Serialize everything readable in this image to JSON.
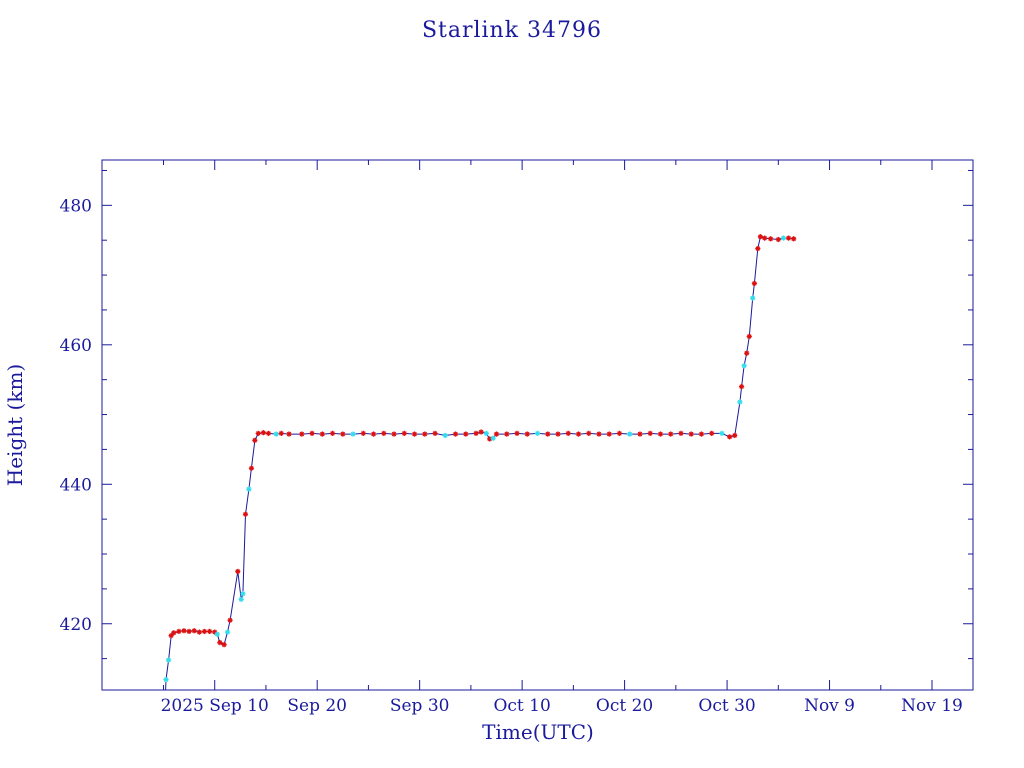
{
  "chart_data": {
    "type": "line",
    "title": "Starlink 34796",
    "xlabel": "Time(UTC)",
    "ylabel": "Height (km)",
    "xlim": [
      "2025-08-30",
      "2025-11-23"
    ],
    "ylim": [
      410.5,
      486.5
    ],
    "grid": false,
    "x_ticks": [
      {
        "date": "2025-09-10",
        "label": "2025 Sep 10"
      },
      {
        "date": "2025-09-20",
        "label": "Sep 20"
      },
      {
        "date": "2025-09-30",
        "label": "Sep 30"
      },
      {
        "date": "2025-10-10",
        "label": "Oct 10"
      },
      {
        "date": "2025-10-20",
        "label": "Oct 20"
      },
      {
        "date": "2025-10-30",
        "label": "Oct 30"
      },
      {
        "date": "2025-11-09",
        "label": "Nov  9"
      },
      {
        "date": "2025-11-19",
        "label": "Nov 19"
      }
    ],
    "x_minor_ticks": [
      "2025-09-05",
      "2025-09-15",
      "2025-09-25",
      "2025-10-05",
      "2025-10-15",
      "2025-10-25",
      "2025-11-04",
      "2025-11-14"
    ],
    "y_ticks": [
      420,
      440,
      460,
      480
    ],
    "y_minor_ticks": [
      415,
      425,
      430,
      435,
      445,
      450,
      455,
      465,
      470,
      475,
      485
    ],
    "line_color": "#1a1a9c",
    "marker_colors": {
      "red": "#dd1111",
      "cyan": "#33ddee"
    },
    "series": [
      {
        "points": [
          [
            "2025-09-05 05:00",
            410.5,
            "none"
          ],
          [
            "2025-09-05 06:00",
            412.0,
            "cyan"
          ],
          [
            "2025-09-05 12:00",
            414.8,
            "cyan"
          ],
          [
            "2025-09-05 18:00",
            418.3,
            "red"
          ],
          [
            "2025-09-06 00:00",
            418.7,
            "red"
          ],
          [
            "2025-09-06 12:00",
            418.9,
            "red"
          ],
          [
            "2025-09-07 00:00",
            419.0,
            "red"
          ],
          [
            "2025-09-07 12:00",
            418.9,
            "red"
          ],
          [
            "2025-09-08 00:00",
            419.0,
            "red"
          ],
          [
            "2025-09-08 12:00",
            418.8,
            "red"
          ],
          [
            "2025-09-09 00:00",
            418.9,
            "red"
          ],
          [
            "2025-09-09 12:00",
            418.9,
            "red"
          ],
          [
            "2025-09-10 00:00",
            418.8,
            "red"
          ],
          [
            "2025-09-10 06:00",
            418.5,
            "cyan"
          ],
          [
            "2025-09-10 12:00",
            417.3,
            "red"
          ],
          [
            "2025-09-10 22:00",
            417.0,
            "red"
          ],
          [
            "2025-09-11 06:00",
            418.8,
            "cyan"
          ],
          [
            "2025-09-11 12:00",
            420.5,
            "red"
          ],
          [
            "2025-09-12 06:00",
            427.5,
            "red"
          ],
          [
            "2025-09-12 14:00",
            423.5,
            "cyan"
          ],
          [
            "2025-09-12 18:00",
            424.3,
            "cyan"
          ],
          [
            "2025-09-13 00:00",
            435.7,
            "red"
          ],
          [
            "2025-09-13 08:00",
            439.3,
            "cyan"
          ],
          [
            "2025-09-13 14:00",
            442.3,
            "red"
          ],
          [
            "2025-09-13 22:00",
            446.3,
            "red"
          ],
          [
            "2025-09-14 06:00",
            447.3,
            "red"
          ],
          [
            "2025-09-14 18:00",
            447.4,
            "red"
          ],
          [
            "2025-09-15 06:00",
            447.3,
            "red"
          ],
          [
            "2025-09-16 00:00",
            447.2,
            "cyan"
          ],
          [
            "2025-09-16 12:00",
            447.3,
            "red"
          ],
          [
            "2025-09-17 06:00",
            447.2,
            "red"
          ],
          [
            "2025-09-18 12:00",
            447.2,
            "red"
          ],
          [
            "2025-09-19 12:00",
            447.3,
            "red"
          ],
          [
            "2025-09-20 12:00",
            447.2,
            "red"
          ],
          [
            "2025-09-21 12:00",
            447.3,
            "red"
          ],
          [
            "2025-09-22 12:00",
            447.2,
            "red"
          ],
          [
            "2025-09-23 12:00",
            447.2,
            "cyan"
          ],
          [
            "2025-09-24 12:00",
            447.3,
            "red"
          ],
          [
            "2025-09-25 12:00",
            447.2,
            "red"
          ],
          [
            "2025-09-26 12:00",
            447.3,
            "red"
          ],
          [
            "2025-09-27 12:00",
            447.2,
            "red"
          ],
          [
            "2025-09-28 12:00",
            447.3,
            "red"
          ],
          [
            "2025-09-29 12:00",
            447.2,
            "red"
          ],
          [
            "2025-09-30 12:00",
            447.2,
            "red"
          ],
          [
            "2025-10-01 12:00",
            447.3,
            "red"
          ],
          [
            "2025-10-02 12:00",
            447.0,
            "cyan"
          ],
          [
            "2025-10-03 12:00",
            447.2,
            "red"
          ],
          [
            "2025-10-04 12:00",
            447.2,
            "red"
          ],
          [
            "2025-10-05 12:00",
            447.3,
            "red"
          ],
          [
            "2025-10-06 00:00",
            447.5,
            "red"
          ],
          [
            "2025-10-06 12:00",
            447.3,
            "cyan"
          ],
          [
            "2025-10-06 20:00",
            446.5,
            "red"
          ],
          [
            "2025-10-07 04:00",
            446.6,
            "cyan"
          ],
          [
            "2025-10-07 12:00",
            447.2,
            "red"
          ],
          [
            "2025-10-08 12:00",
            447.2,
            "red"
          ],
          [
            "2025-10-09 12:00",
            447.3,
            "red"
          ],
          [
            "2025-10-10 12:00",
            447.2,
            "red"
          ],
          [
            "2025-10-11 12:00",
            447.3,
            "cyan"
          ],
          [
            "2025-10-12 12:00",
            447.2,
            "red"
          ],
          [
            "2025-10-13 12:00",
            447.2,
            "red"
          ],
          [
            "2025-10-14 12:00",
            447.3,
            "red"
          ],
          [
            "2025-10-15 12:00",
            447.2,
            "red"
          ],
          [
            "2025-10-16 12:00",
            447.3,
            "red"
          ],
          [
            "2025-10-17 12:00",
            447.2,
            "red"
          ],
          [
            "2025-10-18 12:00",
            447.2,
            "red"
          ],
          [
            "2025-10-19 12:00",
            447.3,
            "red"
          ],
          [
            "2025-10-20 12:00",
            447.2,
            "cyan"
          ],
          [
            "2025-10-21 12:00",
            447.2,
            "red"
          ],
          [
            "2025-10-22 12:00",
            447.3,
            "red"
          ],
          [
            "2025-10-23 12:00",
            447.2,
            "red"
          ],
          [
            "2025-10-24 12:00",
            447.2,
            "red"
          ],
          [
            "2025-10-25 12:00",
            447.3,
            "red"
          ],
          [
            "2025-10-26 12:00",
            447.2,
            "red"
          ],
          [
            "2025-10-27 12:00",
            447.2,
            "red"
          ],
          [
            "2025-10-28 12:00",
            447.3,
            "red"
          ],
          [
            "2025-10-29 12:00",
            447.3,
            "cyan"
          ],
          [
            "2025-10-30 06:00",
            446.8,
            "red"
          ],
          [
            "2025-10-30 18:00",
            447.0,
            "red"
          ],
          [
            "2025-10-31 06:00",
            451.8,
            "cyan"
          ],
          [
            "2025-10-31 10:00",
            454.0,
            "red"
          ],
          [
            "2025-10-31 16:00",
            457.0,
            "cyan"
          ],
          [
            "2025-10-31 22:00",
            458.8,
            "red"
          ],
          [
            "2025-11-01 04:00",
            461.2,
            "red"
          ],
          [
            "2025-11-01 12:00",
            466.7,
            "cyan"
          ],
          [
            "2025-11-01 16:00",
            468.8,
            "red"
          ],
          [
            "2025-11-02 00:00",
            473.8,
            "red"
          ],
          [
            "2025-11-02 06:00",
            475.5,
            "red"
          ],
          [
            "2025-11-02 16:00",
            475.3,
            "red"
          ],
          [
            "2025-11-03 06:00",
            475.2,
            "red"
          ],
          [
            "2025-11-04 00:00",
            475.1,
            "red"
          ],
          [
            "2025-11-04 12:00",
            475.3,
            "cyan"
          ],
          [
            "2025-11-05 00:00",
            475.3,
            "red"
          ],
          [
            "2025-11-05 12:00",
            475.2,
            "red"
          ]
        ]
      }
    ]
  }
}
